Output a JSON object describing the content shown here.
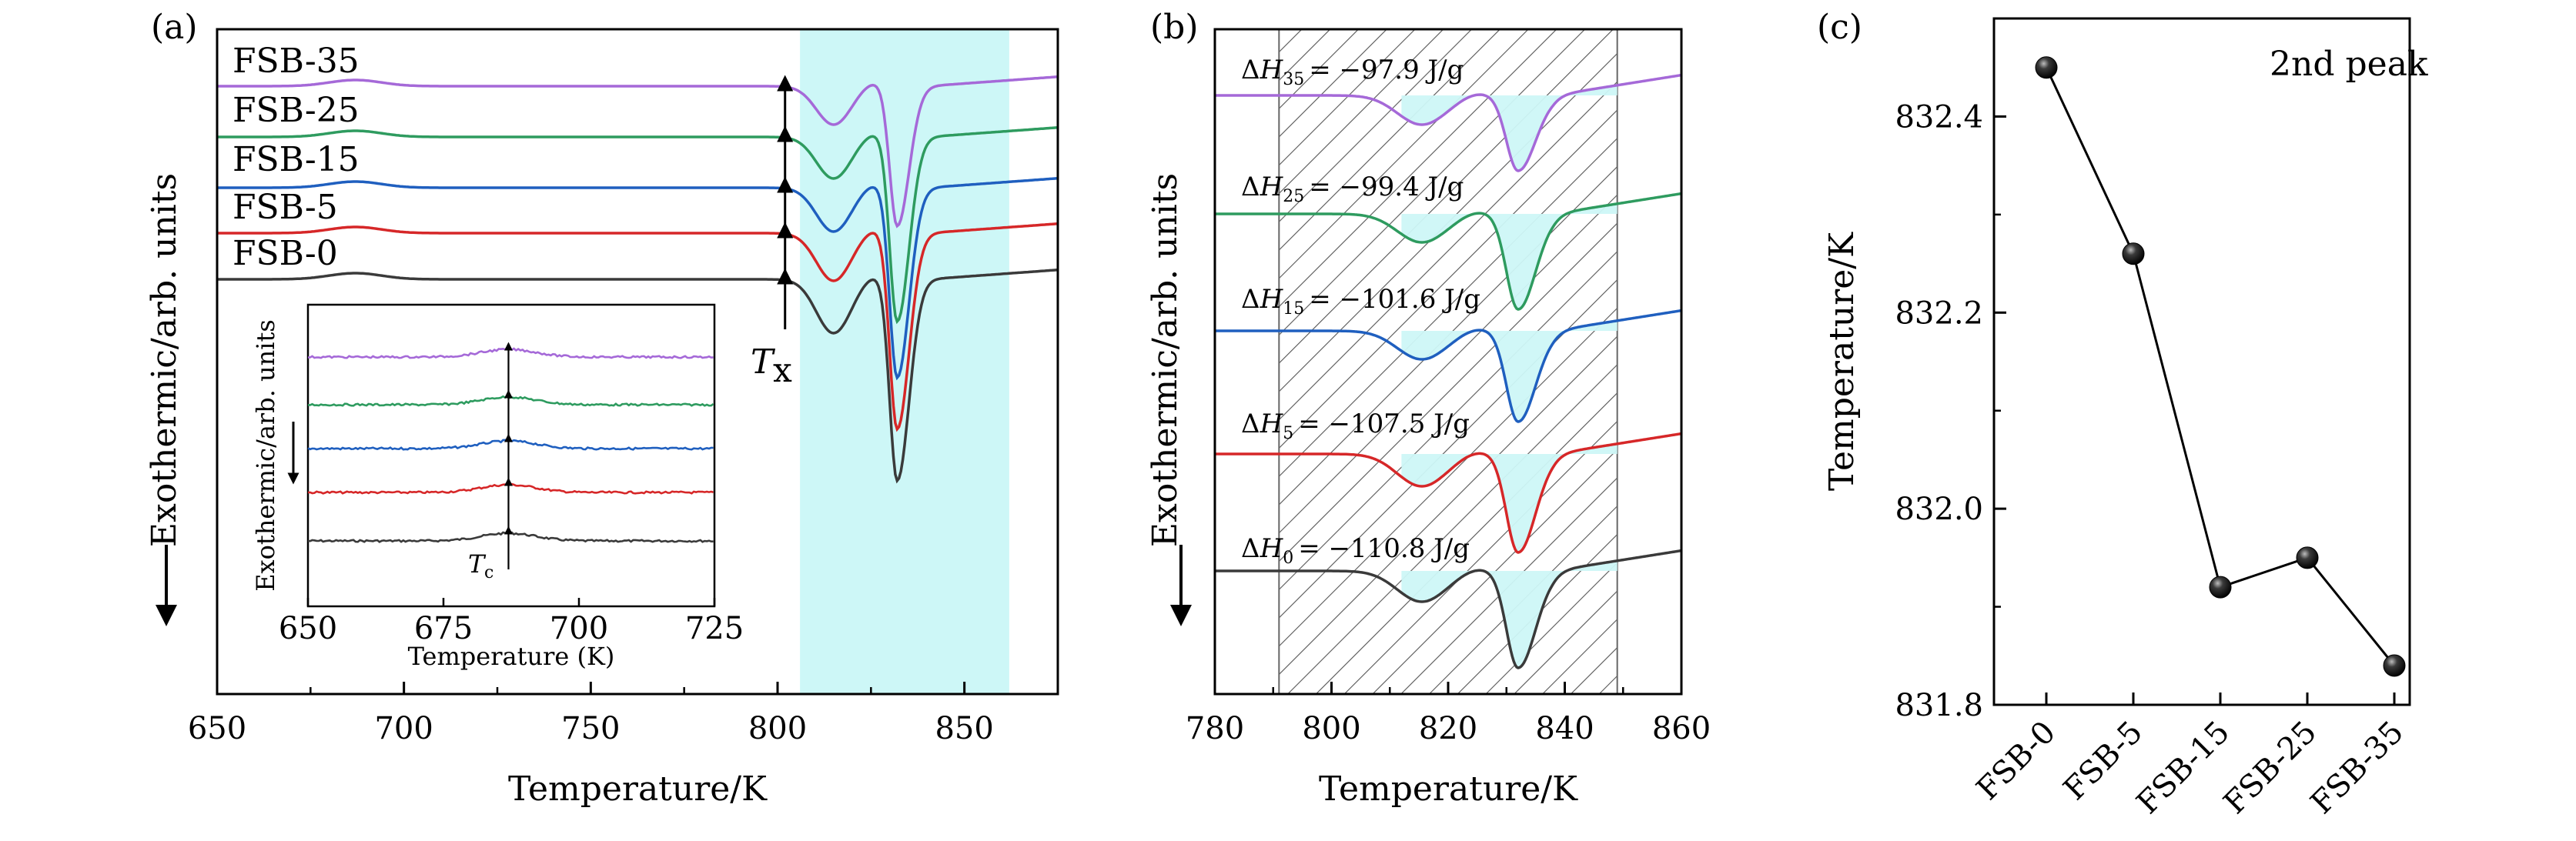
{
  "colors": {
    "FSB-0": "#3a3a3a",
    "FSB-5": "#d62728",
    "FSB-15": "#1f5fbf",
    "FSB-25": "#2e9b5f",
    "FSB-35": "#a569d8",
    "crystallization_band": "#cdf7f7",
    "hatch": "#555555",
    "marker": "#111111"
  },
  "chart_data": [
    {
      "panel": "(a)",
      "type": "line",
      "xlabel": "Temperature/K",
      "ylabel": "Exothermic/arb. units",
      "xlim": [
        650,
        875
      ],
      "xticks": [
        650,
        700,
        750,
        800,
        850
      ],
      "y_axis_values": "none",
      "highlight_band_x": [
        806,
        862
      ],
      "series": [
        {
          "name": "FSB-0",
          "offset": 0
        },
        {
          "name": "FSB-5",
          "offset": 1
        },
        {
          "name": "FSB-15",
          "offset": 2
        },
        {
          "name": "FSB-25",
          "offset": 3
        },
        {
          "name": "FSB-35",
          "offset": 4
        }
      ],
      "first_peak_x": 815,
      "second_peak_x": 832,
      "arrow_label": "T",
      "arrow_label_sub": "x",
      "onset_Tx": 802,
      "inset": {
        "xlabel": "Temperature (K)",
        "ylabel": "Exothermic/arb. units",
        "xlim": [
          650,
          725
        ],
        "xticks": [
          650,
          675,
          700,
          725
        ],
        "peak_x": 687,
        "arrow_label": "T",
        "arrow_label_sub": "c"
      }
    },
    {
      "panel": "(b)",
      "type": "line",
      "xlabel": "Temperature/K",
      "ylabel": "Exothermic/arb. units",
      "xlim": [
        780,
        860
      ],
      "xticks": [
        780,
        800,
        820,
        840,
        860
      ],
      "hatched_range_x": [
        791,
        849
      ],
      "enthalpy_labels": [
        {
          "series": "FSB-35",
          "text": "ΔH",
          "sub": "35",
          "value": "= −97.9 J/g"
        },
        {
          "series": "FSB-25",
          "text": "ΔH",
          "sub": "25",
          "value": "= −99.4 J/g"
        },
        {
          "series": "FSB-15",
          "text": "ΔH",
          "sub": "15",
          "value": "= −101.6 J/g"
        },
        {
          "series": "FSB-5",
          "text": "ΔH",
          "sub": "5",
          "value": "= −107.5 J/g"
        },
        {
          "series": "FSB-0",
          "text": "ΔH",
          "sub": "0",
          "value": "= −110.8 J/g"
        }
      ]
    },
    {
      "panel": "(c)",
      "type": "line",
      "xlabel": "",
      "ylabel": "Temperature/K",
      "annotation": "2nd peak",
      "categories": [
        "FSB-0",
        "FSB-5",
        "FSB-15",
        "FSB-25",
        "FSB-35"
      ],
      "values": [
        832.45,
        832.26,
        831.92,
        831.95,
        831.84
      ],
      "ylim": [
        831.8,
        832.5
      ],
      "yticks": [
        "831.8",
        "832.0",
        "832.2",
        "832.4"
      ]
    }
  ]
}
